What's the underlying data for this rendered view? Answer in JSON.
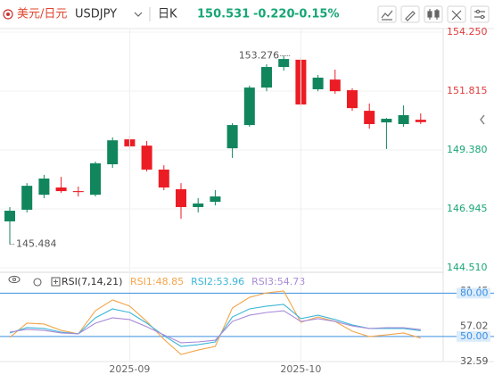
{
  "header": {
    "name": "美元/日元",
    "symbol": "USDJPY",
    "period": "日K",
    "price": "150.531",
    "change": "-0.220",
    "change_pct": "-0.15%"
  },
  "chart_data": [
    {
      "type": "candlestick",
      "categories": [
        null,
        null,
        null,
        null,
        null,
        null,
        null,
        "2025-09",
        null,
        null,
        null,
        null,
        null,
        null,
        null,
        null,
        null,
        "2025-10",
        null,
        null,
        null,
        null,
        null,
        null,
        null
      ],
      "open": [
        146.43,
        146.91,
        147.53,
        147.83,
        147.68,
        147.53,
        148.79,
        149.82,
        149.56,
        148.57,
        147.76,
        147.02,
        147.24,
        149.45,
        150.41,
        151.96,
        152.81,
        153.11,
        151.89,
        152.29,
        151.85,
        151.0,
        150.52,
        150.45,
        150.63
      ],
      "high": [
        147.02,
        148.01,
        148.35,
        148.27,
        147.87,
        148.9,
        149.9,
        149.97,
        149.75,
        148.75,
        148.01,
        147.39,
        147.72,
        150.49,
        152.04,
        152.92,
        153.276,
        153.2,
        152.48,
        152.7,
        151.93,
        151.3,
        150.7,
        151.22,
        150.89
      ],
      "low": [
        145.484,
        146.8,
        147.39,
        147.61,
        147.46,
        147.46,
        148.64,
        149.45,
        148.49,
        147.72,
        146.54,
        146.8,
        147.09,
        149.05,
        150.34,
        151.81,
        152.66,
        151.19,
        151.81,
        151.7,
        151.0,
        150.26,
        149.42,
        150.34,
        150.45
      ],
      "close": [
        146.87,
        147.9,
        148.2,
        147.68,
        147.64,
        148.83,
        149.78,
        149.53,
        148.57,
        147.83,
        147.02,
        147.17,
        147.46,
        150.41,
        151.96,
        152.81,
        153.14,
        151.26,
        152.37,
        151.81,
        151.11,
        150.45,
        150.67,
        150.82,
        150.531
      ],
      "up_color": "#11865c",
      "down_color": "#ec1c24",
      "ylim": [
        144.51,
        154.25
      ],
      "yticks": [
        {
          "value": 154.25,
          "label": "154.250"
        },
        151.815,
        {
          "value": 149.38,
          "label": "149.380"
        },
        146.945,
        {
          "value": 144.51,
          "label": "144.510"
        }
      ],
      "high_label": 153.276,
      "low_label": 145.484,
      "grid": true
    },
    {
      "type": "line",
      "title": "RSI(7,14,21)",
      "categories": [
        null,
        null,
        null,
        null,
        null,
        null,
        null,
        "2025-09",
        null,
        null,
        null,
        null,
        null,
        null,
        null,
        null,
        null,
        "2025-10",
        null,
        null,
        null,
        null,
        null,
        null,
        null
      ],
      "series": [
        {
          "name": "RSI1:48.85",
          "color": "#f3a54a",
          "values": [
            49.3,
            59.2,
            58.6,
            54.2,
            51.8,
            67.8,
            75.3,
            71.0,
            60.4,
            48.0,
            37.5,
            40.6,
            43.1,
            69.7,
            77.1,
            80.2,
            81.45,
            59.8,
            63.5,
            60.4,
            53.6,
            49.9,
            51.1,
            52.4,
            48.85
          ]
        },
        {
          "name": "RSI2:53.96",
          "color": "#3cb6d8",
          "values": [
            52.4,
            56.1,
            55.5,
            53.0,
            51.8,
            62.9,
            69.1,
            66.6,
            59.2,
            50.5,
            43.1,
            44.3,
            46.2,
            63.5,
            69.1,
            71.0,
            72.2,
            62.3,
            64.7,
            61.7,
            58.0,
            55.5,
            55.5,
            55.5,
            53.96
          ]
        },
        {
          "name": "RSI3:54.73",
          "color": "#a88bd8",
          "values": [
            53.0,
            54.9,
            54.2,
            52.4,
            51.8,
            59.2,
            62.9,
            61.7,
            56.7,
            51.1,
            45.6,
            46.2,
            47.4,
            60.4,
            64.7,
            66.6,
            67.8,
            60.4,
            62.3,
            60.4,
            57.3,
            55.5,
            56.1,
            56.1,
            54.73
          ]
        }
      ],
      "ylim": [
        32.59,
        81.45
      ],
      "yticks": [
        81.45,
        {
          "value": 80,
          "label": "80.00"
        },
        57.02,
        {
          "value": 50,
          "label": "50.00"
        },
        32.59
      ],
      "hlines": [
        80,
        50
      ],
      "hline_color": "#3d8fe0"
    }
  ]
}
